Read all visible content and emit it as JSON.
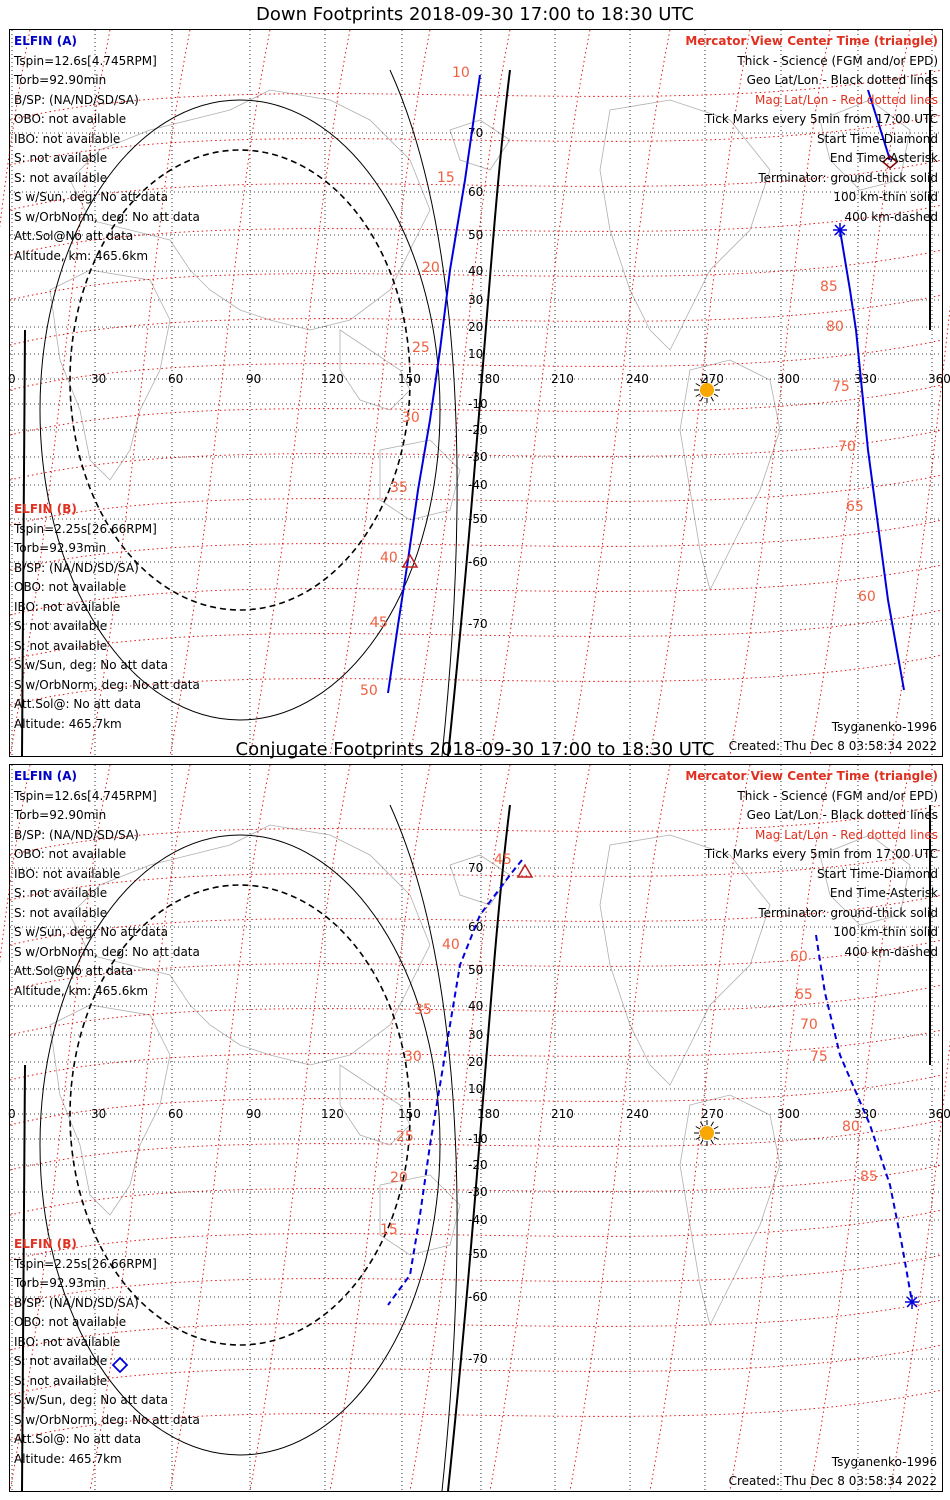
{
  "colors": {
    "geo_grid": "#000000",
    "mag_grid": "#e00000",
    "track_a": "#0000dd",
    "tick_red": "#f06040",
    "sun": "#f8a800",
    "coast": "#b0b0b0"
  },
  "icons": {
    "start": "diamond-icon",
    "end": "asterisk-icon",
    "center": "triangle-icon",
    "sun": "sun-icon"
  },
  "panels": [
    {
      "id": "down",
      "title": "Down Footprints 2018-09-30 17:00 to 18:30 UTC",
      "lon_labels": [
        "0",
        "30",
        "60",
        "90",
        "120",
        "150",
        "180",
        "210",
        "240",
        "270",
        "300",
        "330",
        "360"
      ],
      "lat_labels": [
        "70",
        "60",
        "50",
        "40",
        "30",
        "20",
        "10",
        "-10",
        "-20",
        "-30",
        "-40",
        "-50",
        "-60",
        "-70"
      ],
      "ticks_a": [
        "10",
        "15",
        "20",
        "25",
        "30",
        "35",
        "40",
        "45",
        "50"
      ],
      "ticks_a2": [
        "85",
        "80",
        "75",
        "70",
        "65",
        "60"
      ],
      "elfin_a": [
        "ELFIN (A)",
        "Tspin=12.6s[4.745RPM]",
        "Torb=92.90min",
        "B/SP: (NA/ND/SD/SA)",
        "OBO: not available",
        "IBO: not available",
        "S: not available",
        "S: not available",
        "S w/Sun, deg: No att data",
        "S w/OrbNorm, deg: No att data",
        "Att.Sol@No att data",
        "Altitude, km: 465.6km"
      ],
      "elfin_b": [
        "ELFIN (B)",
        "Tspin=2.25s[26.66RPM]",
        "Torb=92.93min",
        "B/SP: (NA/ND/SD/SA)",
        "OBO: not available",
        "IBO: not available",
        "S: not available",
        "S: not available",
        "S w/Sun, deg: No att data",
        "S w/OrbNorm, deg: No att data",
        "Att.Sol@: No att data",
        "Altitude: 465.7km"
      ],
      "legend": [
        "Mercator View Center Time (triangle)",
        "Thick - Science (FGM and/or EPD)",
        "Geo Lat/Lon - Black dotted lines",
        "Mag Lat/Lon - Red dotted lines",
        "Tick Marks every 5min from 17:00 UTC",
        "Start Time-Diamond",
        "End Time-Asterisk",
        "Terminator: ground-thick solid",
        "100 km-thin solid",
        "400 km-dashed"
      ],
      "model": "Tsyganenko-1996",
      "created": "Created: Thu Dec  8 03:58:34 2022"
    },
    {
      "id": "conjugate",
      "title": "Conjugate Footprints 2018-09-30 17:00 to 18:30 UTC",
      "lon_labels": [
        "0",
        "30",
        "60",
        "90",
        "120",
        "150",
        "180",
        "210",
        "240",
        "270",
        "300",
        "330",
        "360"
      ],
      "lat_labels": [
        "70",
        "60",
        "50",
        "40",
        "30",
        "20",
        "10",
        "-10",
        "-20",
        "-30",
        "-40",
        "-50",
        "-60",
        "-70"
      ],
      "ticks_a": [
        "45",
        "40",
        "35",
        "30",
        "25",
        "20",
        "15"
      ],
      "ticks_a2": [
        "60",
        "65",
        "70",
        "75",
        "80",
        "85"
      ],
      "elfin_a": [
        "ELFIN (A)",
        "Tspin=12.6s[4.745RPM]",
        "Torb=92.90min",
        "B/SP: (NA/ND/SD/SA)",
        "OBO: not available",
        "IBO: not available",
        "S: not available",
        "S: not available",
        "S w/Sun, deg: No att data",
        "S w/OrbNorm, deg: No att data",
        "Att.Sol@No att data",
        "Altitude, km: 465.6km"
      ],
      "elfin_b": [
        "ELFIN (B)",
        "Tspin=2.25s[26.66RPM]",
        "Torb=92.93min",
        "B/SP: (NA/ND/SD/SA)",
        "OBO: not available",
        "IBO: not available",
        "S: not available",
        "S: not available",
        "S w/Sun, deg: No att data",
        "S w/OrbNorm, deg: No att data",
        "Att.Sol@: No att data",
        "Altitude: 465.7km"
      ],
      "legend": [
        "Mercator View Center Time (triangle)",
        "Thick - Science (FGM and/or EPD)",
        "Geo Lat/Lon - Black dotted lines",
        "Mag Lat/Lon - Red dotted lines",
        "Tick Marks every 5min from 17:00 UTC",
        "Start Time-Diamond",
        "End Time-Asterisk",
        "Terminator: ground-thick solid",
        "100 km-thin solid",
        "400 km-dashed"
      ],
      "model": "Tsyganenko-1996",
      "created": "Created: Thu Dec  8 03:58:34 2022"
    }
  ]
}
